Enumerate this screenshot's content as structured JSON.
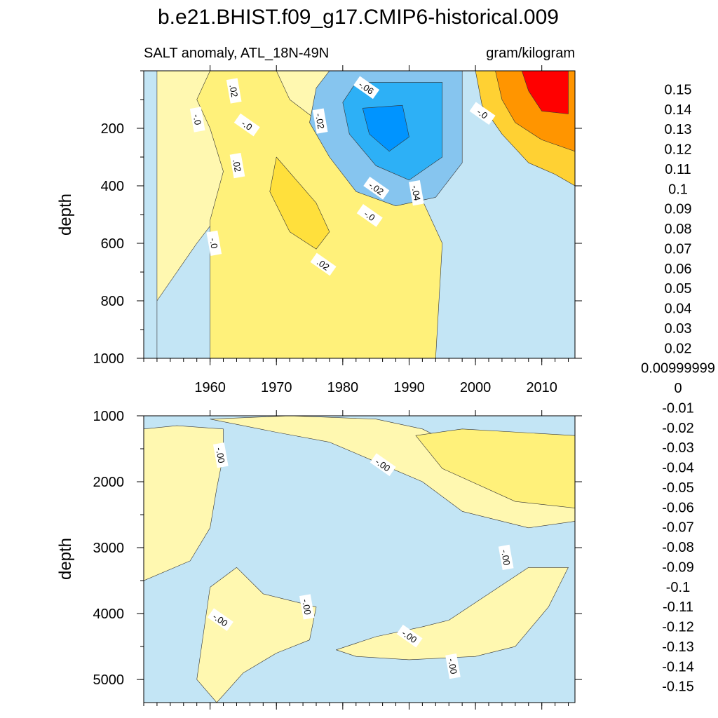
{
  "figure": {
    "title": "b.e21.BHIST.f09_g17.CMIP6-historical.009",
    "subtitle_left": "SALT anomaly, ATL_18N-49N",
    "subtitle_right": "gram/kilogram"
  },
  "chart_data": [
    {
      "type": "heatmap",
      "panel": "upper",
      "variable": "SALT anomaly",
      "region": "ATL_18N-49N",
      "units": "gram/kilogram",
      "ylabel": "depth",
      "xlim": [
        1950,
        2015
      ],
      "ylim": [
        1000,
        0
      ],
      "x_ticks": [
        1960,
        1970,
        1980,
        1990,
        2000,
        2010
      ],
      "y_ticks": [
        200,
        400,
        600,
        800,
        1000
      ],
      "contour_labels": [
        {
          "text": ".02",
          "x": 1963.5,
          "y": 70
        },
        {
          "text": "-.06",
          "x": 1983.5,
          "y": 60
        },
        {
          "text": "-.0",
          "x": 1958,
          "y": 170
        },
        {
          "text": "-.0",
          "x": 1965.5,
          "y": 190
        },
        {
          "text": "-.02",
          "x": 1976.5,
          "y": 175
        },
        {
          "text": "-.0",
          "x": 2001,
          "y": 150
        },
        {
          "text": ".02",
          "x": 1964,
          "y": 330
        },
        {
          "text": "-.02",
          "x": 1985,
          "y": 410
        },
        {
          "text": "-.04",
          "x": 1991,
          "y": 425
        },
        {
          "text": "-.0",
          "x": 1984,
          "y": 505
        },
        {
          "text": "-.0",
          "x": 1960.5,
          "y": 600
        },
        {
          "text": ".02",
          "x": 1977,
          "y": 675
        }
      ],
      "regions": [
        {
          "level": 0.005,
          "approx": [
            [
              1952,
              1000
            ],
            [
              1952,
              800
            ],
            [
              1955,
              700
            ],
            [
              1958,
              600
            ],
            [
              1960,
              540
            ],
            [
              1963,
              440
            ],
            [
              1965,
              380
            ],
            [
              1968,
              300
            ],
            [
              1972,
              260
            ],
            [
              1976,
              220
            ],
            [
              1980,
              180
            ],
            [
              1983,
              100
            ],
            [
              1983,
              0
            ],
            [
              1952,
              0
            ]
          ],
          "note": "background positive tongue"
        },
        {
          "level": 0.015,
          "approx": [
            [
              1960,
              1000
            ],
            [
              1960,
              520
            ],
            [
              1962,
              350
            ],
            [
              1960,
              200
            ],
            [
              1958,
              100
            ],
            [
              1960,
              0
            ],
            [
              1970,
              0
            ],
            [
              1972,
              100
            ],
            [
              1976,
              170
            ],
            [
              1980,
              200
            ],
            [
              1988,
              330
            ],
            [
              1992,
              450
            ],
            [
              1995,
              600
            ],
            [
              1994,
              1000
            ]
          ]
        },
        {
          "level": 0.025,
          "approx": [
            [
              1970,
              300
            ],
            [
              1973,
              380
            ],
            [
              1976,
              460
            ],
            [
              1978,
              560
            ],
            [
              1976,
              620
            ],
            [
              1972,
              560
            ],
            [
              1969,
              420
            ]
          ]
        },
        {
          "level": -0.025,
          "approx": [
            [
              1978,
              0
            ],
            [
              1998,
              0
            ],
            [
              1998,
              320
            ],
            [
              1994,
              440
            ],
            [
              1988,
              470
            ],
            [
              1982,
              420
            ],
            [
              1978,
              300
            ],
            [
              1975,
              180
            ],
            [
              1976,
              60
            ]
          ]
        },
        {
          "level": -0.045,
          "approx": [
            [
              1982,
              40
            ],
            [
              1995,
              40
            ],
            [
              1995,
              300
            ],
            [
              1990,
              380
            ],
            [
              1985,
              330
            ],
            [
              1981,
              220
            ],
            [
              1980,
              110
            ]
          ]
        },
        {
          "level": -0.065,
          "approx": [
            [
              1983,
              130
            ],
            [
              1989,
              120
            ],
            [
              1990,
              230
            ],
            [
              1987,
              280
            ],
            [
              1984,
              220
            ]
          ]
        },
        {
          "level": 0.035,
          "approx": [
            [
              2000,
              0
            ],
            [
              2015,
              0
            ],
            [
              2015,
              400
            ],
            [
              2012,
              360
            ],
            [
              2008,
              320
            ],
            [
              2004,
              220
            ],
            [
              2001,
              120
            ]
          ]
        },
        {
          "level": 0.065,
          "approx": [
            [
              2003,
              0
            ],
            [
              2015,
              0
            ],
            [
              2015,
              280
            ],
            [
              2010,
              240
            ],
            [
              2006,
              180
            ],
            [
              2004,
              100
            ]
          ]
        },
        {
          "level": 0.105,
          "approx": [
            [
              2007,
              0
            ],
            [
              2014,
              0
            ],
            [
              2014,
              150
            ],
            [
              2010,
              140
            ],
            [
              2008,
              70
            ]
          ]
        }
      ]
    },
    {
      "type": "heatmap",
      "panel": "lower",
      "ylabel": "depth",
      "xlim": [
        1950,
        2015
      ],
      "ylim": [
        5350,
        1000
      ],
      "x_ticks": [
        1960,
        1970,
        1980,
        1990,
        2000,
        2010
      ],
      "y_ticks": [
        1000,
        2000,
        3000,
        4000,
        5000
      ],
      "contour_labels": [
        {
          "text": "-.00",
          "x": 1961.5,
          "y": 1600
        },
        {
          "text": "-.00",
          "x": 1986,
          "y": 1750
        },
        {
          "text": "-.00",
          "x": 2004.5,
          "y": 3150
        },
        {
          "text": "-.00",
          "x": 1961.5,
          "y": 4100
        },
        {
          "text": "-.00",
          "x": 1974.5,
          "y": 3900
        },
        {
          "text": "-.00",
          "x": 1990,
          "y": 4350
        },
        {
          "text": "-.00",
          "x": 1996.5,
          "y": 4800
        }
      ],
      "regions": [
        {
          "level": 0.005,
          "approx": [
            [
              1950,
              1200
            ],
            [
              1955,
              1150
            ],
            [
              1962,
              1200
            ],
            [
              1962,
              1600
            ],
            [
              1961,
              2100
            ],
            [
              1960,
              2700
            ],
            [
              1957,
              3200
            ],
            [
              1950,
              3500
            ]
          ]
        },
        {
          "level": 0.005,
          "approx": [
            [
              1960,
              1050
            ],
            [
              1972,
              1000
            ],
            [
              1985,
              1050
            ],
            [
              1992,
              1200
            ],
            [
              1998,
              1500
            ],
            [
              2004,
              1700
            ],
            [
              2015,
              1700
            ],
            [
              2015,
              2600
            ],
            [
              2008,
              2700
            ],
            [
              1998,
              2450
            ],
            [
              1992,
              2000
            ],
            [
              1985,
              1700
            ],
            [
              1978,
              1400
            ],
            [
              1970,
              1250
            ]
          ]
        },
        {
          "level": 0.012,
          "approx": [
            [
              1991,
              1300
            ],
            [
              1998,
              1200
            ],
            [
              2015,
              1300
            ],
            [
              2015,
              2400
            ],
            [
              2006,
              2300
            ],
            [
              1995,
              1800
            ]
          ]
        },
        {
          "level": 0.005,
          "approx": [
            [
              1960,
              3600
            ],
            [
              1964,
              3300
            ],
            [
              1968,
              3700
            ],
            [
              1976,
              3900
            ],
            [
              1975,
              4400
            ],
            [
              1970,
              4600
            ],
            [
              1965,
              4900
            ],
            [
              1961,
              5350
            ],
            [
              1958,
              5000
            ]
          ]
        },
        {
          "level": 0.005,
          "approx": [
            [
              1979,
              4550
            ],
            [
              1985,
              4350
            ],
            [
              1992,
              4200
            ],
            [
              1996,
              4100
            ],
            [
              2002,
              3700
            ],
            [
              2008,
              3300
            ],
            [
              2014,
              3300
            ],
            [
              2011,
              3900
            ],
            [
              2006,
              4500
            ],
            [
              2000,
              4650
            ],
            [
              1990,
              4700
            ],
            [
              1982,
              4650
            ]
          ]
        }
      ]
    }
  ],
  "colorbar": {
    "labels": [
      "0.15",
      "0.14",
      "0.13",
      "0.12",
      "0.11",
      "0.1",
      "0.09",
      "0.08",
      "0.07",
      "0.06",
      "0.05",
      "0.04",
      "0.03",
      "0.02",
      "0.00999999",
      "0",
      "-0.01",
      "-0.02",
      "-0.03",
      "-0.04",
      "-0.05",
      "-0.06",
      "-0.07",
      "-0.08",
      "-0.09",
      "-0.1",
      "-0.11",
      "-0.12",
      "-0.13",
      "-0.14",
      "-0.15"
    ],
    "colors": [
      "#ffb3b3",
      "#ea6868",
      "#d52828",
      "#cf0000",
      "#e50000",
      "#ff0000",
      "#ff3300",
      "#ff5500",
      "#ff7700",
      "#ff9500",
      "#ffa800",
      "#ffbe17",
      "#ffd133",
      "#ffe03c",
      "#fff17a",
      "#fff8b0",
      "#c3e5f5",
      "#a8d7f1",
      "#86c5ef",
      "#5cb5f0",
      "#2db0f6",
      "#00b4ff",
      "#0094ff",
      "#1a78ee",
      "#2e63e1",
      "#3b57dd",
      "#2a46e6",
      "#1f33ee",
      "#0b14ff",
      "#3a1ef2",
      "#6a34ee",
      "#8a2bea"
    ]
  }
}
